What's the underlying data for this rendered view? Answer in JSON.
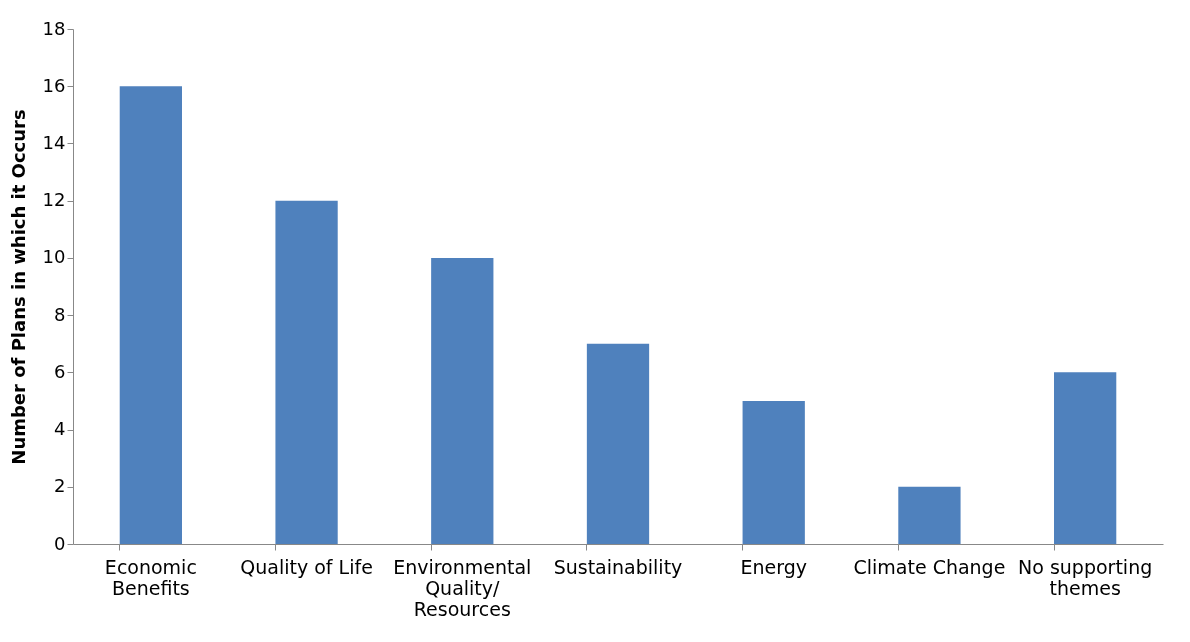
{
  "chart_data": {
    "type": "bar",
    "ylabel": "Number of Plans in which it Occurs",
    "categories": [
      "Economic Benefits",
      "Quality of Life",
      "Environmental Quality/ Resources",
      "Sustainability",
      "Energy",
      "Climate Change",
      "No supporting themes"
    ],
    "values": [
      16,
      12,
      10,
      7,
      5,
      2,
      6
    ],
    "color": "#4f81bd",
    "ylim": [
      0,
      18
    ],
    "yticks": [
      0,
      2,
      4,
      6,
      8,
      10,
      12,
      14,
      16,
      18
    ],
    "grid": false
  }
}
